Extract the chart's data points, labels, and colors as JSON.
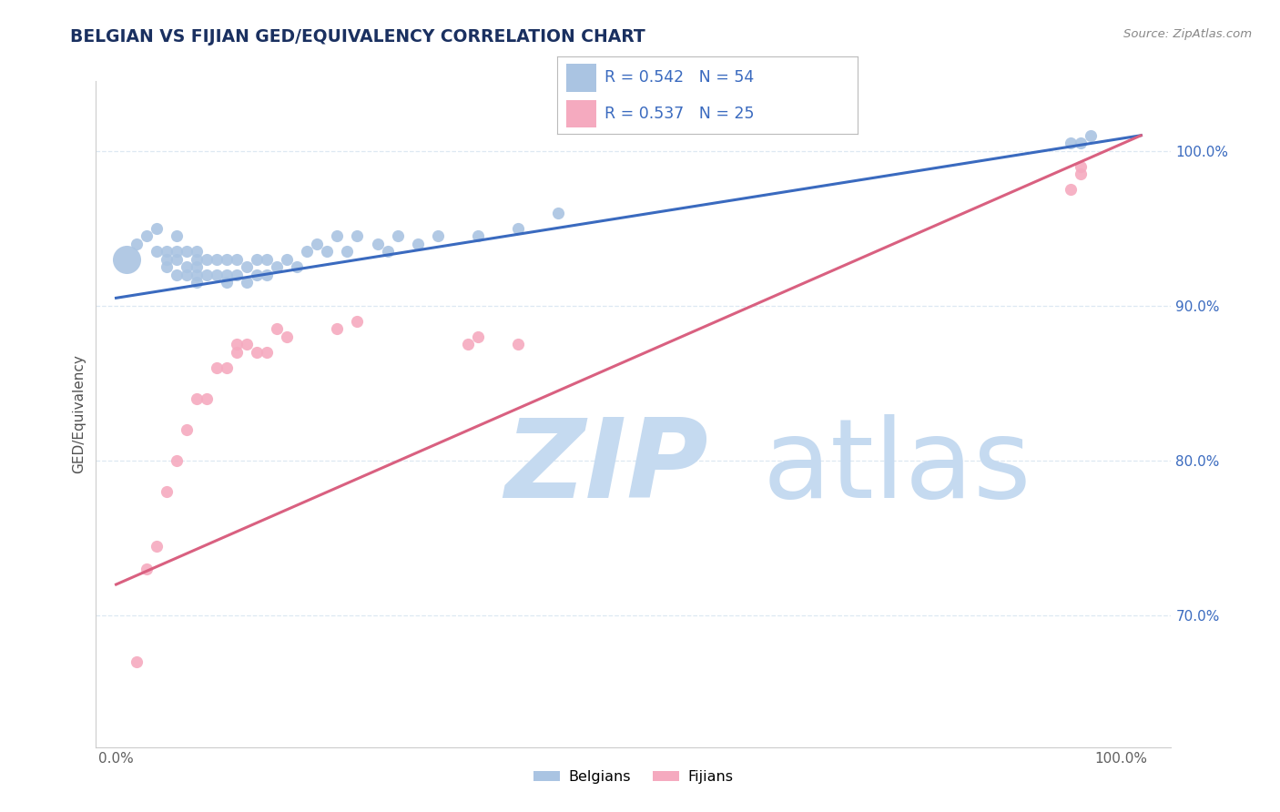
{
  "title": "BELGIAN VS FIJIAN GED/EQUIVALENCY CORRELATION CHART",
  "source": "Source: ZipAtlas.com",
  "ylabel": "GED/Equivalency",
  "ytick_labels": [
    "70.0%",
    "80.0%",
    "90.0%",
    "100.0%"
  ],
  "ytick_values": [
    0.7,
    0.8,
    0.9,
    1.0
  ],
  "xlim": [
    -0.02,
    1.05
  ],
  "ylim": [
    0.615,
    1.045
  ],
  "belgian_R": 0.542,
  "belgian_N": 54,
  "fijian_R": 0.537,
  "fijian_N": 25,
  "belgian_color": "#aac4e2",
  "fijian_color": "#f5aabf",
  "belgian_line_color": "#3a6abf",
  "fijian_line_color": "#d96080",
  "legend_text_color": "#3a6abf",
  "title_color": "#1a3060",
  "watermark_zip_color": "#c5daf0",
  "watermark_atlas_color": "#c5daf0",
  "background_color": "#ffffff",
  "grid_color": "#dde8f2",
  "axis_color": "#cccccc",
  "tick_label_color": "#606060",
  "right_tick_color": "#3a6abf",
  "belgian_x": [
    0.02,
    0.03,
    0.04,
    0.04,
    0.05,
    0.05,
    0.05,
    0.06,
    0.06,
    0.06,
    0.06,
    0.07,
    0.07,
    0.07,
    0.08,
    0.08,
    0.08,
    0.08,
    0.08,
    0.09,
    0.09,
    0.1,
    0.1,
    0.11,
    0.11,
    0.11,
    0.12,
    0.12,
    0.13,
    0.13,
    0.14,
    0.14,
    0.15,
    0.15,
    0.16,
    0.17,
    0.18,
    0.19,
    0.2,
    0.21,
    0.22,
    0.23,
    0.24,
    0.26,
    0.27,
    0.28,
    0.3,
    0.32,
    0.36,
    0.4,
    0.44,
    0.95,
    0.96,
    0.97
  ],
  "belgian_y": [
    0.94,
    0.945,
    0.935,
    0.95,
    0.925,
    0.935,
    0.93,
    0.92,
    0.93,
    0.935,
    0.945,
    0.92,
    0.925,
    0.935,
    0.915,
    0.92,
    0.925,
    0.93,
    0.935,
    0.92,
    0.93,
    0.92,
    0.93,
    0.915,
    0.92,
    0.93,
    0.92,
    0.93,
    0.915,
    0.925,
    0.92,
    0.93,
    0.92,
    0.93,
    0.925,
    0.93,
    0.925,
    0.935,
    0.94,
    0.935,
    0.945,
    0.935,
    0.945,
    0.94,
    0.935,
    0.945,
    0.94,
    0.945,
    0.945,
    0.95,
    0.96,
    1.005,
    1.005,
    1.01
  ],
  "fijian_x": [
    0.02,
    0.03,
    0.04,
    0.05,
    0.06,
    0.07,
    0.08,
    0.09,
    0.1,
    0.11,
    0.12,
    0.12,
    0.13,
    0.14,
    0.15,
    0.16,
    0.17,
    0.22,
    0.24,
    0.35,
    0.36,
    0.4,
    0.95,
    0.96,
    0.96
  ],
  "fijian_y": [
    0.67,
    0.73,
    0.745,
    0.78,
    0.8,
    0.82,
    0.84,
    0.84,
    0.86,
    0.86,
    0.87,
    0.875,
    0.875,
    0.87,
    0.87,
    0.885,
    0.88,
    0.885,
    0.89,
    0.875,
    0.88,
    0.875,
    0.975,
    0.985,
    0.99
  ],
  "large_belgian_x": [
    0.01
  ],
  "large_belgian_y": [
    0.93
  ],
  "large_belgian_size": 500,
  "dot_size": 90,
  "trend_linewidth": 2.2
}
